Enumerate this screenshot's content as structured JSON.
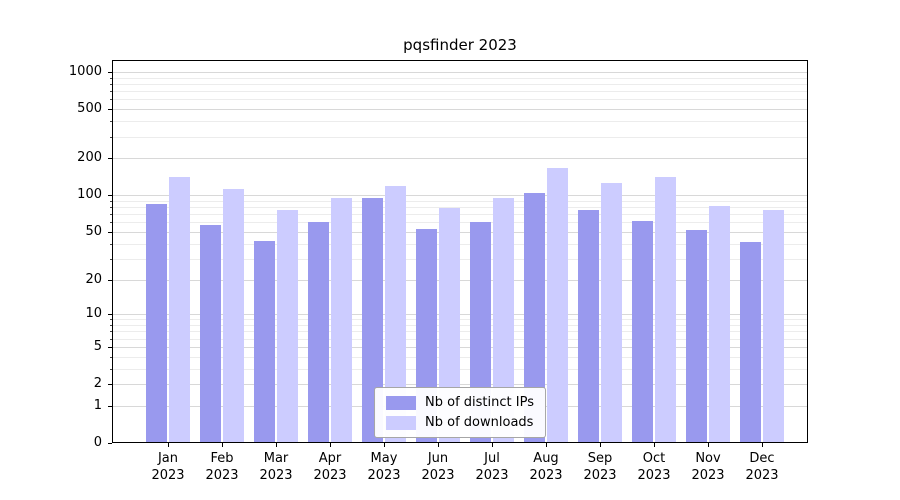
{
  "chart_data": {
    "type": "bar",
    "title": "pqsfinder 2023",
    "xlabel": "",
    "ylabel": "",
    "year": "2023",
    "categories": [
      "Jan",
      "Feb",
      "Mar",
      "Apr",
      "May",
      "Jun",
      "Jul",
      "Aug",
      "Sep",
      "Oct",
      "Nov",
      "Dec"
    ],
    "series": [
      {
        "name": "Nb of distinct IPs",
        "color": "#9999ee",
        "values": [
          85,
          57,
          42,
          60,
          95,
          53,
          60,
          105,
          75,
          62,
          52,
          41
        ]
      },
      {
        "name": "Nb of downloads",
        "color": "#ccccff",
        "values": [
          140,
          113,
          75,
          95,
          118,
          78,
          95,
          165,
          125,
          140,
          82,
          75
        ]
      }
    ],
    "yscale": "log1p",
    "ylim": [
      0,
      1000
    ],
    "yticks": [
      1000,
      500,
      200,
      100,
      50,
      20,
      10,
      5,
      2,
      1,
      0
    ],
    "grid": true,
    "legend_position": "bottom-center"
  }
}
